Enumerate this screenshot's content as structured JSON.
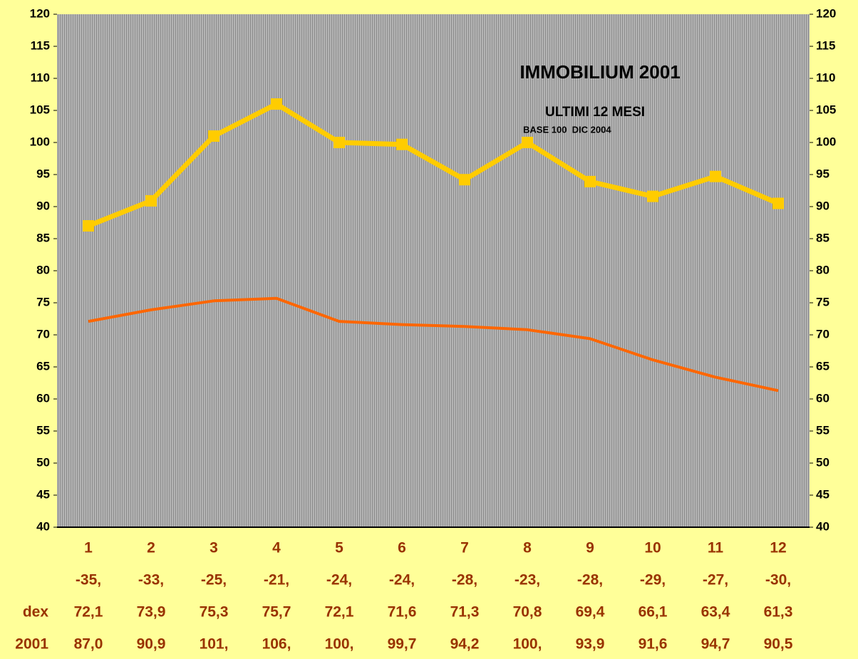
{
  "chart_data": {
    "type": "line",
    "title": "IMMOBILIUM 2001",
    "subtitle": "ULTIMI 12 MESI",
    "annotation": "BASE 100  DIC 2004",
    "categories": [
      "1",
      "2",
      "3",
      "4",
      "5",
      "6",
      "7",
      "8",
      "9",
      "10",
      "11",
      "12"
    ],
    "table_row": [
      "-35,",
      "-33,",
      "-25,",
      "-21,",
      "-24,",
      "-24,",
      "-28,",
      "-23,",
      "-28,",
      "-29,",
      "-27,",
      "-30,"
    ],
    "series": [
      {
        "name": "dex",
        "color": "#ff6600",
        "values": [
          72.1,
          73.9,
          75.3,
          75.7,
          72.1,
          71.6,
          71.3,
          70.8,
          69.4,
          66.1,
          63.4,
          61.3
        ],
        "value_labels": [
          "72,1",
          "73,9",
          "75,3",
          "75,7",
          "72,1",
          "71,6",
          "71,3",
          "70,8",
          "69,4",
          "66,1",
          "63,4",
          "61,3"
        ]
      },
      {
        "name": "2001",
        "color": "#ffcc00",
        "values": [
          87.0,
          90.9,
          101,
          106,
          100,
          99.7,
          94.2,
          100,
          93.9,
          91.6,
          94.7,
          90.5
        ],
        "value_labels": [
          "87,0",
          "90,9",
          "101,",
          "106,",
          "100,",
          "99,7",
          "94,2",
          "100,",
          "93,9",
          "91,6",
          "94,7",
          "90,5"
        ]
      }
    ],
    "ylim": [
      40,
      120
    ],
    "yticks": [
      40,
      45,
      50,
      55,
      60,
      65,
      70,
      75,
      80,
      85,
      90,
      95,
      100,
      105,
      110,
      115,
      120
    ],
    "y2lim": [
      40,
      120
    ],
    "y2ticks": [
      40,
      45,
      50,
      55,
      60,
      65,
      70,
      75,
      80,
      85,
      90,
      95,
      100,
      105,
      110,
      115,
      120
    ]
  }
}
